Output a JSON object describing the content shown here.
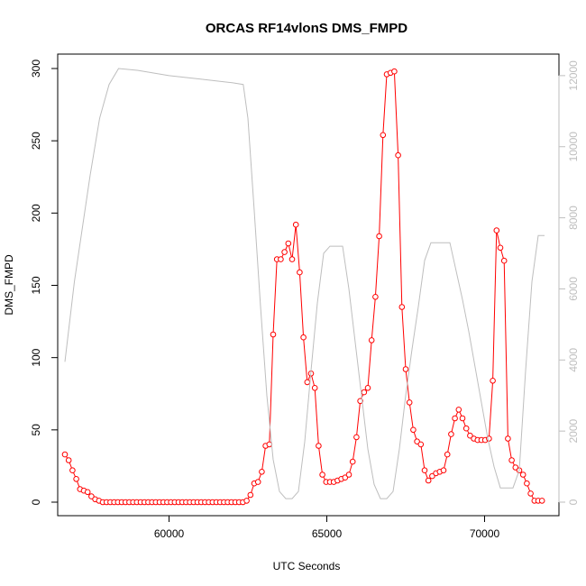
{
  "chart_data": {
    "type": "line",
    "title": "ORCAS RF14vlonS DMS_FMPD",
    "xlabel": "UTC Seconds",
    "ylabel": "DMS_FMPD",
    "xlim": [
      56700,
      71900
    ],
    "ylim": [
      0,
      300
    ],
    "x_ticks": [
      60000,
      65000,
      70000
    ],
    "y_ticks": [
      0,
      50,
      100,
      150,
      200,
      250,
      300
    ],
    "y2lim": [
      0,
      12200
    ],
    "y2_ticks": [
      0,
      2000,
      4000,
      6000,
      8000,
      10000,
      12000
    ],
    "grid": false,
    "legend": "none",
    "colors": {
      "dms": "#ff0000",
      "altitude": "#bebebe"
    },
    "series": [
      {
        "axis": "left",
        "style": "line+circles",
        "x": [
          56700,
          56820,
          56940,
          57060,
          57180,
          57300,
          57420,
          57540,
          57660,
          57780,
          57900,
          58020,
          58140,
          58260,
          58380,
          58500,
          58620,
          58740,
          58860,
          58980,
          59100,
          59220,
          59340,
          59460,
          59580,
          59700,
          59820,
          59940,
          60060,
          60180,
          60300,
          60420,
          60540,
          60660,
          60780,
          60900,
          61020,
          61140,
          61260,
          61380,
          61500,
          61620,
          61740,
          61860,
          61980,
          62100,
          62220,
          62340,
          62460,
          62580,
          62700,
          62820,
          62940,
          63060,
          63180,
          63300,
          63420,
          63540,
          63660,
          63780,
          63900,
          64020,
          64140,
          64260,
          64380,
          64500,
          64620,
          64740,
          64860,
          64980,
          65100,
          65220,
          65340,
          65460,
          65580,
          65700,
          65820,
          65940,
          66060,
          66180,
          66300,
          66420,
          66540,
          66660,
          66780,
          66900,
          67020,
          67140,
          67260,
          67380,
          67500,
          67620,
          67740,
          67860,
          67980,
          68100,
          68220,
          68340,
          68460,
          68580,
          68700,
          68820,
          68940,
          69060,
          69180,
          69300,
          69420,
          69540,
          69660,
          69780,
          69900,
          70020,
          70140,
          70260,
          70380,
          70500,
          70620,
          70740,
          70860,
          70980,
          71100,
          71220,
          71340,
          71460,
          71580,
          71700,
          71820
        ],
        "y": [
          33,
          29,
          22,
          16,
          9,
          8,
          7,
          4,
          2,
          1,
          0,
          0,
          0,
          0,
          0,
          0,
          0,
          0,
          0,
          0,
          0,
          0,
          0,
          0,
          0,
          0,
          0,
          0,
          0,
          0,
          0,
          0,
          0,
          0,
          0,
          0,
          0,
          0,
          0,
          0,
          0,
          0,
          0,
          0,
          0,
          0,
          0,
          0,
          1,
          5,
          13,
          14,
          21,
          39,
          40,
          116,
          168,
          168,
          173,
          179,
          168,
          192,
          159,
          114,
          83,
          89,
          79,
          39,
          19,
          14,
          14,
          14,
          15,
          16,
          17,
          19,
          28,
          45,
          70,
          76,
          79,
          112,
          142,
          184,
          254,
          296,
          297,
          298,
          240,
          135,
          92,
          69,
          50,
          42,
          40,
          22,
          15,
          18,
          20,
          21,
          22,
          33,
          47,
          58,
          64,
          58,
          51,
          46,
          44,
          43,
          43,
          43,
          44,
          84,
          188,
          176,
          167,
          44,
          29,
          24,
          22,
          19,
          13,
          6,
          1,
          1,
          1
        ]
      },
      {
        "axis": "right",
        "style": "line",
        "x": [
          56700,
          57000,
          57500,
          57800,
          58100,
          58400,
          59000,
          60000,
          61000,
          62000,
          62350,
          62500,
          62700,
          62900,
          63100,
          63300,
          63500,
          63700,
          63900,
          64100,
          64300,
          64500,
          64700,
          64900,
          65100,
          65300,
          65500,
          65700,
          65900,
          66100,
          66300,
          66500,
          66700,
          66900,
          67100,
          67300,
          67500,
          67700,
          67900,
          68100,
          68300,
          68500,
          68700,
          68900,
          69100,
          69300,
          69500,
          69700,
          69900,
          70100,
          70300,
          70500,
          70700,
          70900,
          71100,
          71300,
          71500,
          71700,
          71900
        ],
        "y": [
          3950,
          6200,
          9200,
          10800,
          11750,
          12200,
          12150,
          12000,
          11900,
          11800,
          11750,
          10800,
          8200,
          5500,
          3000,
          1200,
          300,
          100,
          100,
          300,
          1700,
          3700,
          5600,
          7000,
          7200,
          7200,
          7200,
          6000,
          4500,
          3000,
          1500,
          500,
          100,
          100,
          300,
          1500,
          3000,
          4300,
          5500,
          6800,
          7300,
          7300,
          7300,
          7300,
          6500,
          5700,
          4800,
          3800,
          2800,
          1800,
          1000,
          400,
          400,
          400,
          900,
          3700,
          6200,
          7500,
          7500
        ]
      }
    ]
  }
}
